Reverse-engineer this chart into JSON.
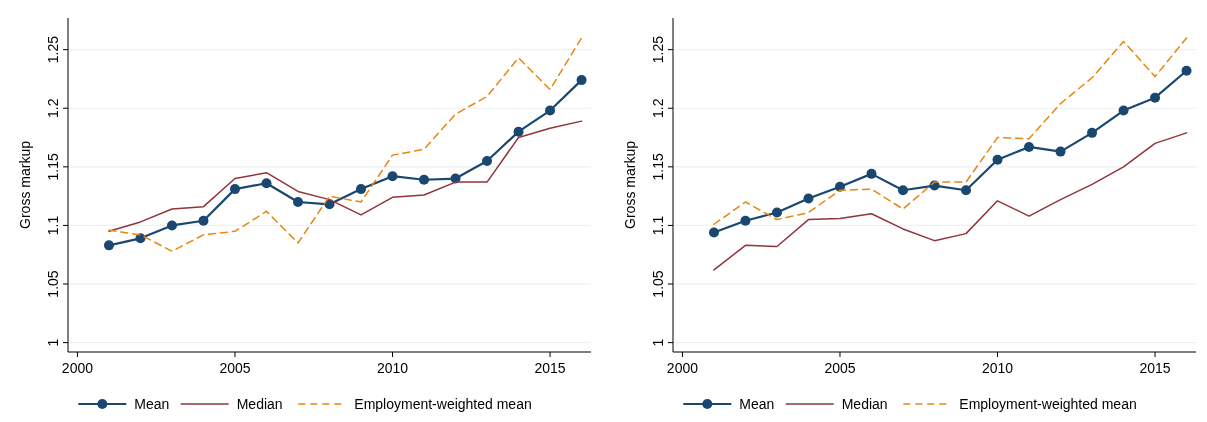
{
  "chart_data": [
    {
      "type": "line",
      "ylabel": "Gross markup",
      "x": [
        2001,
        2002,
        2003,
        2004,
        2005,
        2006,
        2007,
        2008,
        2009,
        2010,
        2011,
        2012,
        2013,
        2014,
        2015,
        2016
      ],
      "xlim": [
        1999.7,
        2016.3
      ],
      "xticks": [
        2000,
        2005,
        2010,
        2015
      ],
      "ylim": [
        0.992,
        1.277
      ],
      "yticks": [
        1,
        1.05,
        1.1,
        1.15,
        1.2,
        1.25
      ],
      "grid": "y",
      "legend": "bottom",
      "series": [
        {
          "name": "Mean",
          "color": "#1a476f",
          "marker": "circle",
          "line_style": "solid",
          "values": [
            1.083,
            1.089,
            1.1,
            1.104,
            1.131,
            1.136,
            1.12,
            1.118,
            1.131,
            1.142,
            1.139,
            1.14,
            1.155,
            1.18,
            1.198,
            1.224
          ]
        },
        {
          "name": "Median",
          "color": "#90353b",
          "marker": "none",
          "line_style": "solid",
          "values": [
            1.095,
            1.103,
            1.114,
            1.116,
            1.14,
            1.145,
            1.129,
            1.122,
            1.109,
            1.124,
            1.126,
            1.137,
            1.137,
            1.175,
            1.183,
            1.189
          ]
        },
        {
          "name": "Employment-weighted mean",
          "color": "#e8870f",
          "marker": "none",
          "line_style": "dashed",
          "values": [
            1.096,
            1.092,
            1.078,
            1.092,
            1.095,
            1.112,
            1.085,
            1.125,
            1.12,
            1.16,
            1.165,
            1.195,
            1.21,
            1.243,
            1.216,
            1.26
          ]
        }
      ]
    },
    {
      "type": "line",
      "ylabel": "Gross markup",
      "x": [
        2001,
        2002,
        2003,
        2004,
        2005,
        2006,
        2007,
        2008,
        2009,
        2010,
        2011,
        2012,
        2013,
        2014,
        2015,
        2016
      ],
      "xlim": [
        1999.7,
        2016.3
      ],
      "xticks": [
        2000,
        2005,
        2010,
        2015
      ],
      "ylim": [
        0.992,
        1.277
      ],
      "yticks": [
        1,
        1.05,
        1.1,
        1.15,
        1.2,
        1.25
      ],
      "grid": "y",
      "legend": "bottom",
      "series": [
        {
          "name": "Mean",
          "color": "#1a476f",
          "marker": "circle",
          "line_style": "solid",
          "values": [
            1.094,
            1.104,
            1.111,
            1.123,
            1.133,
            1.144,
            1.13,
            1.134,
            1.13,
            1.156,
            1.167,
            1.163,
            1.179,
            1.198,
            1.209,
            1.232
          ]
        },
        {
          "name": "Median",
          "color": "#90353b",
          "marker": "none",
          "line_style": "solid",
          "values": [
            1.062,
            1.083,
            1.082,
            1.105,
            1.106,
            1.11,
            1.097,
            1.087,
            1.093,
            1.121,
            1.108,
            1.122,
            1.135,
            1.15,
            1.17,
            1.179
          ]
        },
        {
          "name": "Employment-weighted mean",
          "color": "#e8870f",
          "marker": "none",
          "line_style": "dashed",
          "values": [
            1.101,
            1.12,
            1.105,
            1.111,
            1.13,
            1.131,
            1.114,
            1.137,
            1.137,
            1.175,
            1.174,
            1.204,
            1.226,
            1.257,
            1.227,
            1.26
          ]
        }
      ]
    }
  ]
}
